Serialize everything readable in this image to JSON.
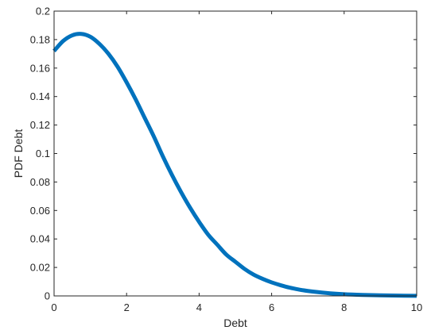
{
  "chart_data": {
    "type": "line",
    "title": "",
    "xlabel": "Debt",
    "ylabel": "PDF Debt",
    "xlim": [
      0,
      10
    ],
    "ylim": [
      0,
      0.2
    ],
    "grid": false,
    "box": true,
    "xticks": [
      0,
      2,
      4,
      6,
      8,
      10
    ],
    "xtick_labels": [
      "0",
      "2",
      "4",
      "6",
      "8",
      "10"
    ],
    "yticks": [
      0,
      0.02,
      0.04,
      0.06,
      0.08,
      0.1,
      0.12,
      0.14,
      0.16,
      0.18,
      0.2
    ],
    "ytick_labels": [
      "0",
      "0.02",
      "0.04",
      "0.06",
      "0.08",
      "0.1",
      "0.12",
      "0.14",
      "0.16",
      "0.18",
      "0.2"
    ],
    "series": [
      {
        "color": "#0072bd",
        "x": [
          0,
          0.25,
          0.5,
          0.75,
          1,
          1.25,
          1.5,
          1.75,
          2,
          2.25,
          2.5,
          2.75,
          3,
          3.25,
          3.5,
          3.75,
          4,
          4.25,
          4.5,
          4.75,
          5,
          5.25,
          5.5,
          5.75,
          6,
          6.25,
          6.5,
          6.75,
          7,
          7.5,
          8,
          8.5,
          9,
          9.5,
          10
        ],
        "y": [
          0.172,
          0.179,
          0.183,
          0.184,
          0.182,
          0.177,
          0.17,
          0.161,
          0.15,
          0.138,
          0.125,
          0.112,
          0.098,
          0.085,
          0.073,
          0.062,
          0.052,
          0.043,
          0.036,
          0.029,
          0.024,
          0.019,
          0.015,
          0.012,
          0.0095,
          0.0075,
          0.0058,
          0.0045,
          0.0035,
          0.0021,
          0.0012,
          0.0007,
          0.0004,
          0.0002,
          0.0001
        ]
      }
    ]
  }
}
